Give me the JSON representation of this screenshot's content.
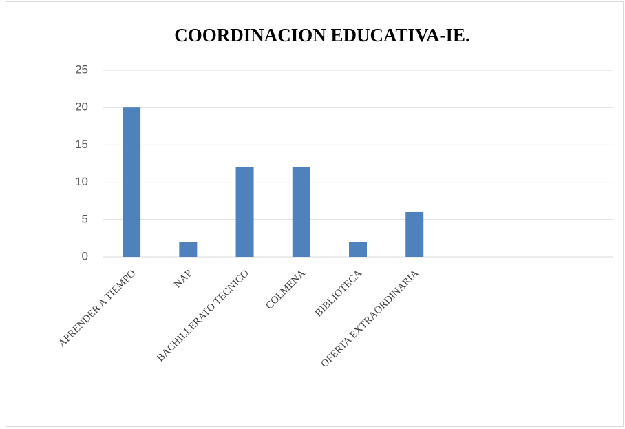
{
  "chart_data": {
    "type": "bar",
    "title": "COORDINACION EDUCATIVA-IE.",
    "categories": [
      "APRENDER A TIEMPO",
      "NAP",
      "BACHILLERATO TECNICO",
      "COLMENA",
      "BIBLIOTECA",
      "OFERTA EXTRAORDINARIA",
      null,
      null,
      null
    ],
    "values": [
      20,
      2,
      12,
      12,
      2,
      6,
      null,
      null,
      null
    ],
    "color": "#4f81bd",
    "ylim": [
      0,
      25
    ],
    "yticks": [
      0,
      5,
      10,
      15,
      20,
      25
    ],
    "grid": true
  }
}
